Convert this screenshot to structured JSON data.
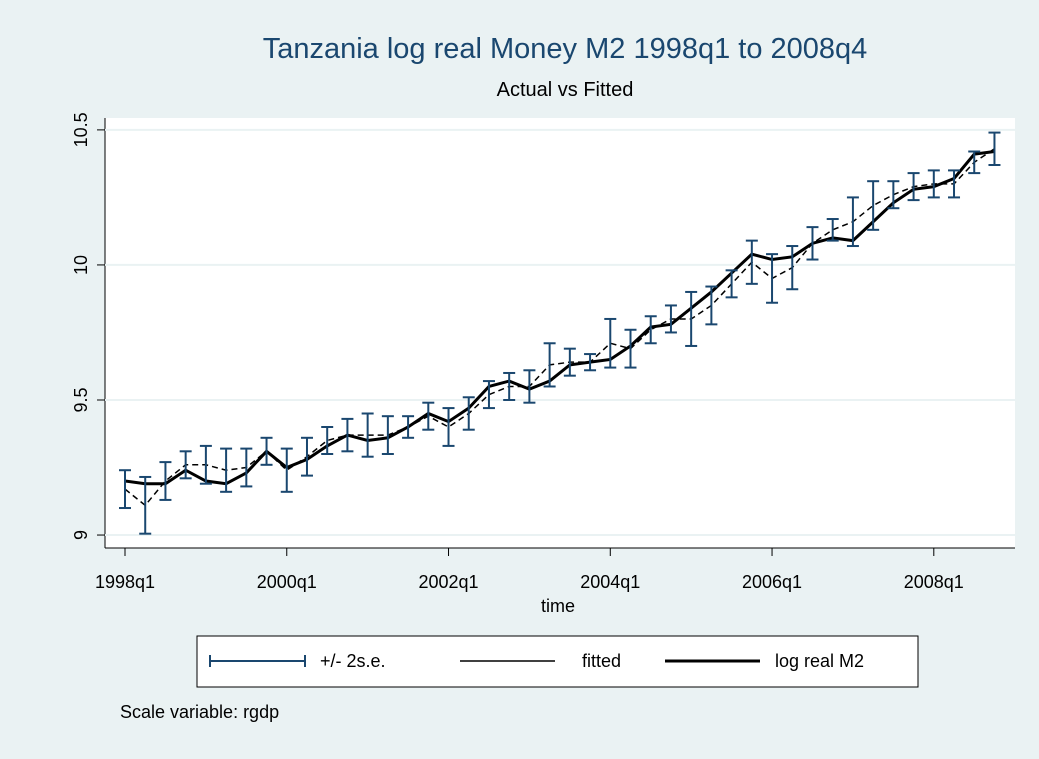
{
  "chart_data": {
    "type": "line",
    "title": "Tanzania log real Money M2 1998q1 to 2008q4",
    "subtitle": "Actual vs Fitted",
    "x_label": "time",
    "note": "Scale variable: rgdp",
    "categories": [
      "1998q1",
      null,
      null,
      null,
      null,
      null,
      null,
      null,
      "2000q1",
      null,
      null,
      null,
      null,
      null,
      null,
      null,
      "2002q1",
      null,
      null,
      null,
      null,
      null,
      null,
      null,
      "2004q1",
      null,
      null,
      null,
      null,
      null,
      null,
      null,
      "2006q1",
      null,
      null,
      null,
      null,
      null,
      null,
      null,
      "2008q1",
      null,
      null,
      null
    ],
    "series": [
      {
        "name": "+/- 2s.e.",
        "color": "#1a476f",
        "role": "error",
        "values": [
          0.07,
          0.105,
          0.07,
          0.05,
          0.07,
          0.08,
          0.07,
          0.05,
          0.08,
          0.07,
          0.05,
          0.06,
          0.08,
          0.07,
          0.04,
          0.05,
          0.07,
          0.06,
          0.05,
          0.05,
          0.06,
          0.08,
          0.05,
          0.03,
          0.09,
          0.07,
          0.05,
          0.05,
          0.1,
          0.07,
          0.05,
          0.08,
          0.09,
          0.08,
          0.06,
          0.04,
          0.09,
          0.09,
          0.05,
          0.05,
          0.05,
          0.05,
          0.04,
          0.06
        ]
      },
      {
        "name": "fitted",
        "color": "#000000",
        "dashed": true,
        "values": [
          9.17,
          9.11,
          9.2,
          9.26,
          9.26,
          9.24,
          9.25,
          9.31,
          9.24,
          9.29,
          9.35,
          9.37,
          9.37,
          9.37,
          9.4,
          9.44,
          9.4,
          9.45,
          9.52,
          9.55,
          9.55,
          9.63,
          9.64,
          9.64,
          9.71,
          9.69,
          9.76,
          9.8,
          9.8,
          9.85,
          9.93,
          10.01,
          9.95,
          9.99,
          10.08,
          10.13,
          10.16,
          10.22,
          10.26,
          10.29,
          10.3,
          10.3,
          10.38,
          10.43
        ]
      },
      {
        "name": "log real M2",
        "color": "#000000",
        "values": [
          9.2,
          9.19,
          9.19,
          9.24,
          9.2,
          9.19,
          9.23,
          9.31,
          9.25,
          9.28,
          9.33,
          9.37,
          9.35,
          9.36,
          9.4,
          9.45,
          9.42,
          9.47,
          9.55,
          9.57,
          9.54,
          9.57,
          9.63,
          9.64,
          9.65,
          9.7,
          9.77,
          9.78,
          9.84,
          9.9,
          9.97,
          10.04,
          10.02,
          10.03,
          10.08,
          10.1,
          10.09,
          10.16,
          10.23,
          10.28,
          10.29,
          10.32,
          10.41,
          10.42
        ]
      }
    ],
    "ylim": [
      8.952,
      10.544
    ],
    "yticks": [
      9,
      9.5,
      10,
      10.5
    ],
    "grid": true
  }
}
